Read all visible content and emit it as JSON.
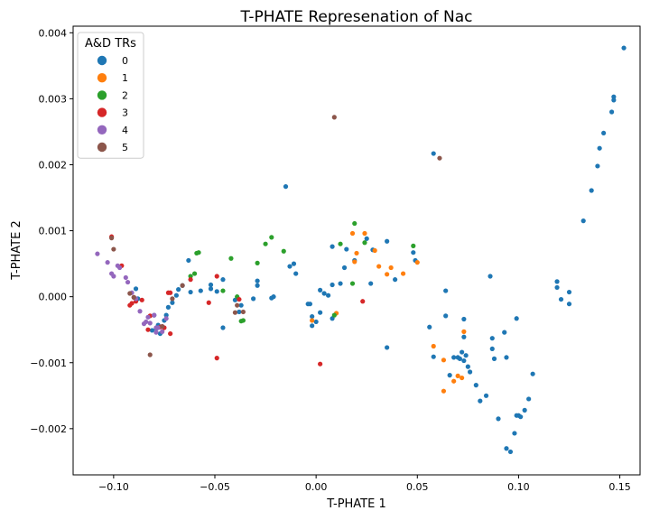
{
  "chart_data": {
    "type": "scatter",
    "title": "T-PHATE Represenation of Nac",
    "xlabel": "T-PHATE 1",
    "ylabel": "T-PHATE 2",
    "xlim": [
      -0.12,
      0.16
    ],
    "ylim": [
      -0.0027,
      0.0041
    ],
    "x_ticks": [
      -0.1,
      -0.05,
      0.0,
      0.05,
      0.1,
      0.15
    ],
    "x_tick_labels": [
      "−0.10",
      "−0.05",
      "0.00",
      "0.05",
      "0.10",
      "0.15"
    ],
    "y_ticks": [
      -0.002,
      -0.001,
      0.0,
      0.001,
      0.002,
      0.003,
      0.004
    ],
    "y_tick_labels": [
      "−0.002",
      "−0.001",
      "0.000",
      "0.001",
      "0.002",
      "0.003",
      "0.004"
    ],
    "grid": false,
    "legend": {
      "title": "A&D TRs",
      "placement": "upper-left"
    },
    "series": [
      {
        "name": "0",
        "color": "#1f77b4",
        "points": [
          [
            0.152,
            0.00377
          ],
          [
            0.147,
            0.00303
          ],
          [
            0.147,
            0.00298
          ],
          [
            0.146,
            0.0028
          ],
          [
            0.142,
            0.00248
          ],
          [
            0.14,
            0.00225
          ],
          [
            0.139,
            0.00198
          ],
          [
            0.136,
            0.00161
          ],
          [
            0.132,
            0.00115
          ],
          [
            0.119,
            0.00023
          ],
          [
            0.119,
            0.00014
          ],
          [
            0.121,
            -4e-05
          ],
          [
            0.125,
            7e-05
          ],
          [
            0.125,
            -0.00011
          ],
          [
            0.058,
            0.00217
          ],
          [
            -0.015,
            0.00167
          ],
          [
            0.099,
            -0.00033
          ],
          [
            0.086,
            0.00031
          ],
          [
            0.093,
            -0.00054
          ],
          [
            0.087,
            -0.00063
          ],
          [
            0.087,
            -0.00079
          ],
          [
            0.088,
            -0.00094
          ],
          [
            0.094,
            -0.00092
          ],
          [
            0.107,
            -0.00117
          ],
          [
            0.105,
            -0.00155
          ],
          [
            0.103,
            -0.00172
          ],
          [
            0.1,
            -0.0018
          ],
          [
            0.101,
            -0.00182
          ],
          [
            0.099,
            -0.0018
          ],
          [
            0.098,
            -0.00207
          ],
          [
            0.09,
            -0.00185
          ],
          [
            0.094,
            -0.0023
          ],
          [
            0.096,
            -0.00235
          ],
          [
            0.084,
            -0.0015
          ],
          [
            0.081,
            -0.00158
          ],
          [
            0.079,
            -0.00134
          ],
          [
            0.076,
            -0.00114
          ],
          [
            0.075,
            -0.00106
          ],
          [
            0.074,
            -0.00089
          ],
          [
            0.072,
            -0.00084
          ],
          [
            0.073,
            -0.00097
          ],
          [
            0.07,
            -0.00092
          ],
          [
            0.071,
            -0.00094
          ],
          [
            0.068,
            -0.00092
          ],
          [
            0.066,
            -0.00119
          ],
          [
            0.058,
            -0.00091
          ],
          [
            0.056,
            -0.00046
          ],
          [
            0.064,
            -0.00029
          ],
          [
            0.073,
            -0.00034
          ],
          [
            0.064,
            9e-05
          ],
          [
            0.073,
            -0.00061
          ],
          [
            0.048,
            0.00067
          ],
          [
            0.049,
            0.00055
          ],
          [
            0.039,
            0.00026
          ],
          [
            0.035,
            0.00084
          ],
          [
            0.035,
            -0.00077
          ],
          [
            0.028,
            0.00071
          ],
          [
            0.027,
            0.0002
          ],
          [
            0.025,
            0.00088
          ],
          [
            0.019,
            0.00055
          ],
          [
            0.015,
            0.00072
          ],
          [
            0.014,
            0.00044
          ],
          [
            0.012,
            0.0002
          ],
          [
            0.008,
            0.00076
          ],
          [
            0.008,
            0.00018
          ],
          [
            0.006,
            2e-05
          ],
          [
            0.004,
            5e-05
          ],
          [
            0.002,
            0.0001
          ],
          [
            0.002,
            -0.00024
          ],
          [
            -0.002,
            -0.0003
          ],
          [
            -0.002,
            -0.00044
          ],
          [
            -0.003,
            -0.00011
          ],
          [
            -0.004,
            -0.00011
          ],
          [
            0.0,
            -0.00038
          ],
          [
            0.008,
            -0.00033
          ],
          [
            -0.011,
            0.0005
          ],
          [
            -0.01,
            0.00035
          ],
          [
            -0.013,
            0.00046
          ],
          [
            -0.021,
            0.0
          ],
          [
            -0.022,
            -2e-05
          ],
          [
            -0.029,
            0.00017
          ],
          [
            -0.029,
            0.00024
          ],
          [
            -0.031,
            -3e-05
          ],
          [
            -0.037,
            -0.00013
          ],
          [
            -0.038,
            -0.00023
          ],
          [
            -0.04,
            -5e-05
          ],
          [
            -0.046,
            0.00026
          ],
          [
            -0.046,
            -0.00047
          ],
          [
            -0.049,
            8e-05
          ],
          [
            -0.052,
            0.00012
          ],
          [
            -0.052,
            0.00018
          ],
          [
            -0.057,
            9e-05
          ],
          [
            -0.062,
            7e-05
          ],
          [
            -0.063,
            0.00055
          ],
          [
            -0.066,
            0.00017
          ],
          [
            -0.068,
            0.00011
          ],
          [
            -0.069,
            2e-05
          ],
          [
            -0.071,
            -9e-05
          ],
          [
            -0.073,
            -0.00016
          ],
          [
            -0.074,
            -0.00028
          ],
          [
            -0.075,
            -0.00036
          ],
          [
            -0.078,
            -0.00043
          ],
          [
            -0.079,
            -0.00048
          ],
          [
            -0.077,
            -0.00056
          ],
          [
            -0.081,
            -0.00051
          ],
          [
            -0.088,
            -3e-05
          ],
          [
            -0.089,
            0.00012
          ],
          [
            -0.08,
            -0.00028
          ]
        ]
      },
      {
        "name": "1",
        "color": "#ff7f0e",
        "points": [
          [
            0.05,
            0.00052
          ],
          [
            0.043,
            0.00035
          ],
          [
            0.037,
            0.00044
          ],
          [
            0.035,
            0.00034
          ],
          [
            0.031,
            0.00046
          ],
          [
            0.029,
            0.0007
          ],
          [
            0.024,
            0.00096
          ],
          [
            0.02,
            0.00066
          ],
          [
            0.019,
            0.00053
          ],
          [
            0.018,
            0.00096
          ],
          [
            0.01,
            -0.00025
          ],
          [
            -0.002,
            -0.00036
          ],
          [
            0.058,
            -0.00075
          ],
          [
            0.063,
            -0.00096
          ],
          [
            0.063,
            -0.00143
          ],
          [
            0.068,
            -0.00128
          ],
          [
            0.07,
            -0.0012
          ],
          [
            0.072,
            -0.00123
          ],
          [
            0.073,
            -0.00053
          ]
        ]
      },
      {
        "name": "2",
        "color": "#2ca02c",
        "points": [
          [
            0.048,
            0.00077
          ],
          [
            0.019,
            0.00111
          ],
          [
            0.024,
            0.00082
          ],
          [
            0.012,
            0.0008
          ],
          [
            0.018,
            0.0002
          ],
          [
            0.009,
            -0.00028
          ],
          [
            -0.016,
            0.00069
          ],
          [
            -0.022,
            0.0009
          ],
          [
            -0.025,
            0.0008
          ],
          [
            -0.029,
            0.00051
          ],
          [
            -0.037,
            -0.00037
          ],
          [
            -0.036,
            -0.00036
          ],
          [
            -0.039,
            0.0
          ],
          [
            -0.042,
            0.00058
          ],
          [
            -0.046,
            9e-05
          ],
          [
            -0.06,
            0.00035
          ],
          [
            -0.062,
            0.00031
          ],
          [
            -0.058,
            0.00067
          ],
          [
            -0.059,
            0.00066
          ]
        ]
      },
      {
        "name": "3",
        "color": "#d62728",
        "points": [
          [
            0.002,
            -0.00102
          ],
          [
            0.023,
            -7e-05
          ],
          [
            -0.038,
            -4e-05
          ],
          [
            -0.049,
            -0.00093
          ],
          [
            -0.049,
            0.00031
          ],
          [
            -0.053,
            -9e-05
          ],
          [
            -0.062,
            0.00026
          ],
          [
            -0.072,
            6e-05
          ],
          [
            -0.072,
            -0.00056
          ],
          [
            -0.075,
            -0.00047
          ],
          [
            -0.076,
            -0.00045
          ],
          [
            -0.077,
            -0.00046
          ],
          [
            -0.083,
            -0.0005
          ],
          [
            -0.086,
            -5e-05
          ],
          [
            -0.089,
            -7e-05
          ],
          [
            -0.09,
            -1e-05
          ],
          [
            -0.091,
            -0.0001
          ],
          [
            -0.092,
            -0.00013
          ],
          [
            -0.096,
            0.00047
          ],
          [
            -0.097,
            0.00045
          ],
          [
            -0.101,
            0.00091
          ],
          [
            -0.073,
            6e-05
          ],
          [
            -0.082,
            -0.00029
          ]
        ]
      },
      {
        "name": "4",
        "color": "#9467bd",
        "points": [
          [
            -0.108,
            0.00065
          ],
          [
            -0.103,
            0.00052
          ],
          [
            -0.101,
            0.00035
          ],
          [
            -0.1,
            0.00031
          ],
          [
            -0.098,
            0.00047
          ],
          [
            -0.097,
            0.00044
          ],
          [
            -0.094,
            0.00029
          ],
          [
            -0.093,
            0.00022
          ],
          [
            -0.091,
            6e-05
          ],
          [
            -0.089,
            -3e-05
          ],
          [
            -0.087,
            -0.00022
          ],
          [
            -0.085,
            -0.00041
          ],
          [
            -0.084,
            -0.00038
          ],
          [
            -0.083,
            -0.00031
          ],
          [
            -0.082,
            -0.0004
          ],
          [
            -0.08,
            -0.00028
          ],
          [
            -0.079,
            -0.00054
          ],
          [
            -0.078,
            -0.00047
          ],
          [
            -0.079,
            -0.00047
          ],
          [
            -0.074,
            -0.00033
          ],
          [
            -0.076,
            -0.00053
          ]
        ]
      },
      {
        "name": "5",
        "color": "#8c564b",
        "points": [
          [
            0.009,
            0.00272
          ],
          [
            0.061,
            0.0021
          ],
          [
            -0.101,
            0.00089
          ],
          [
            -0.1,
            0.00072
          ],
          [
            -0.092,
            5e-05
          ],
          [
            -0.09,
            -1e-05
          ],
          [
            -0.082,
            -0.00088
          ],
          [
            -0.076,
            -0.00045
          ],
          [
            -0.071,
            -3e-05
          ],
          [
            -0.066,
            0.00017
          ],
          [
            -0.04,
            -0.00024
          ],
          [
            -0.039,
            -0.00013
          ],
          [
            -0.036,
            -0.00023
          ]
        ]
      }
    ]
  }
}
